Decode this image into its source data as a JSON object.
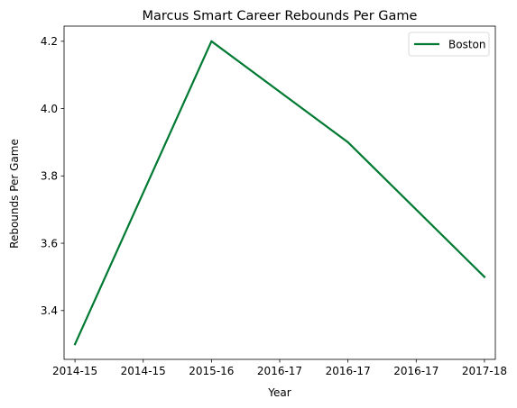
{
  "chart_data": {
    "type": "line",
    "title": "Marcus Smart Career Rebounds Per Game",
    "xlabel": "Year",
    "ylabel": "Rebounds Per Game",
    "x_ticks": [
      "2014-15",
      "2014-15",
      "2015-16",
      "2016-17",
      "2016-17",
      "2016-17",
      "2017-18"
    ],
    "x_index": [
      0,
      1,
      2,
      3,
      4
    ],
    "x_range": [
      -0.08,
      3.08
    ],
    "ylim": [
      3.255,
      4.245
    ],
    "y_ticks": [
      3.4,
      3.6,
      3.8,
      4.0,
      4.2
    ],
    "y_tick_labels": [
      "3.4",
      "3.6",
      "3.8",
      "4.0",
      "4.2"
    ],
    "grid": false,
    "legend_position": "top-right",
    "series": [
      {
        "name": "Boston",
        "x": [
          0,
          1,
          2,
          3
        ],
        "values": [
          3.3,
          4.2,
          3.9,
          3.5
        ],
        "color": "#007A33"
      }
    ]
  }
}
